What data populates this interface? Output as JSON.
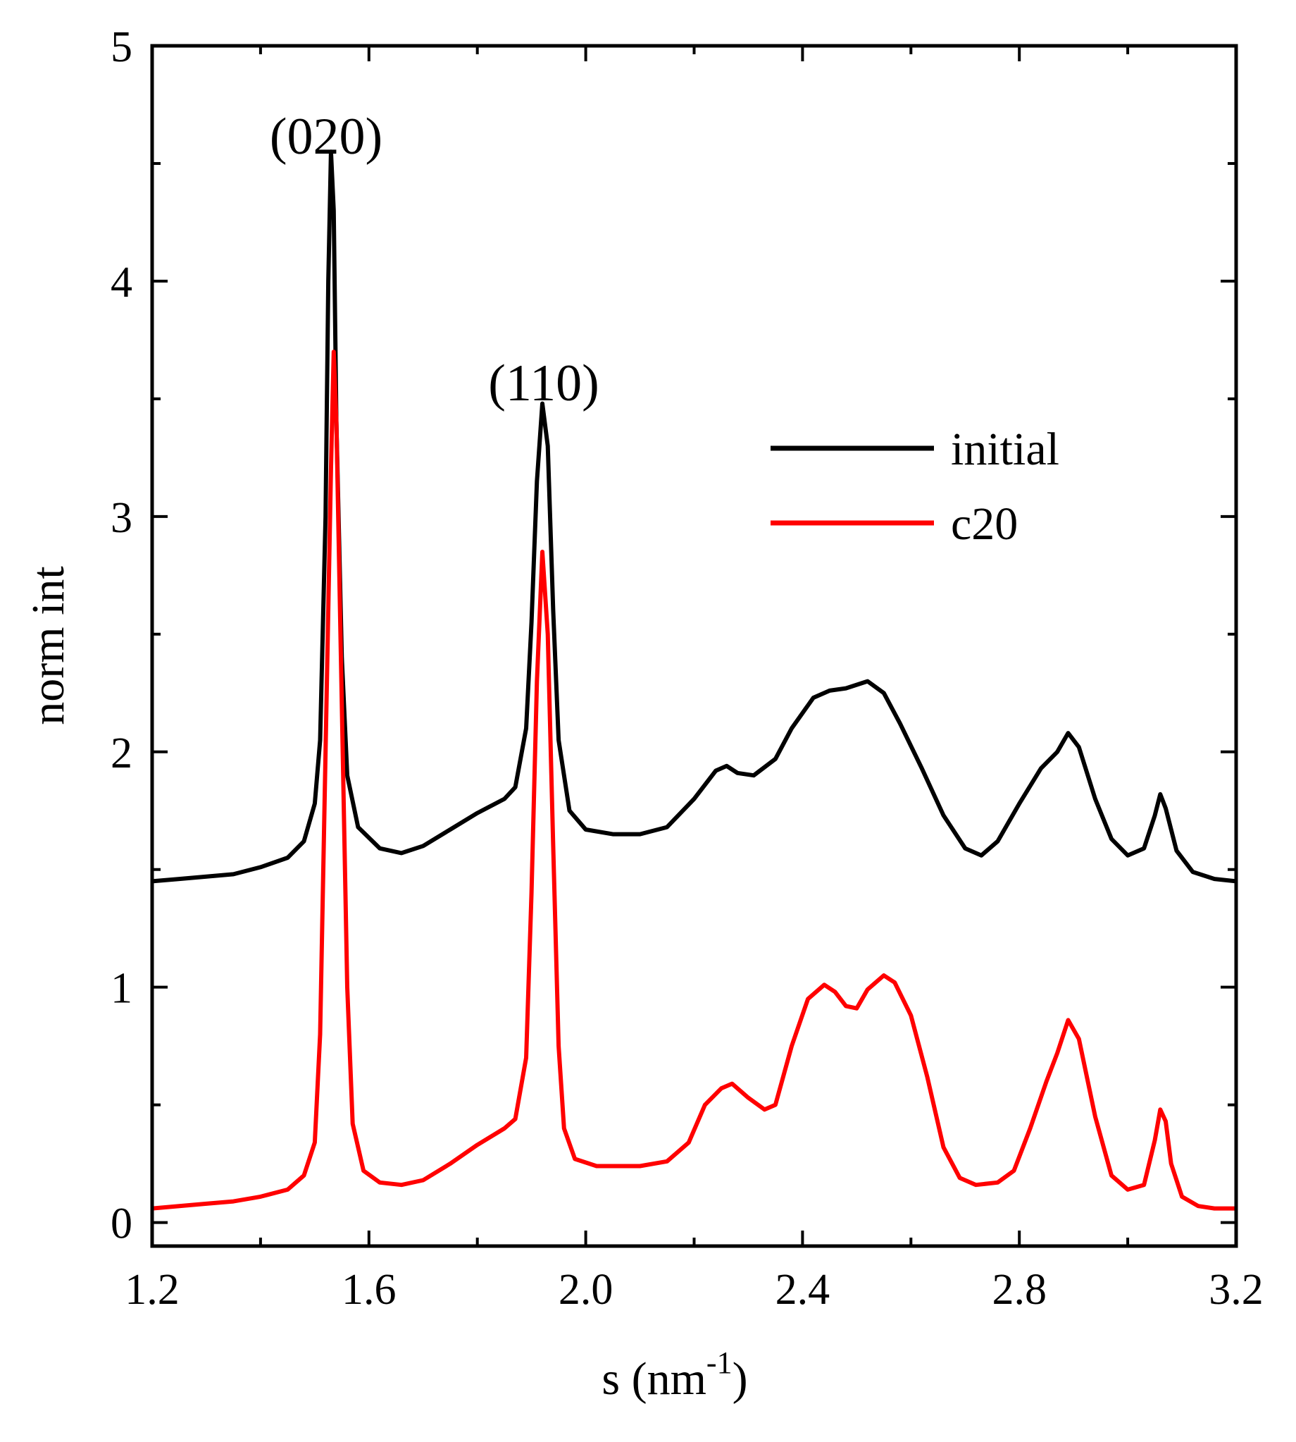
{
  "chart_data": {
    "type": "line",
    "title": "",
    "xlabel": "s (nm",
    "xlabel_sup": "-1",
    "xlabel_close": ")",
    "ylabel": "norm int",
    "xlim": [
      1.2,
      3.2
    ],
    "ylim": [
      -0.1,
      5.0
    ],
    "xticks": [
      1.2,
      1.6,
      2.0,
      2.4,
      2.8,
      3.2
    ],
    "xtick_labels": [
      "1.2",
      "1.6",
      "2.0",
      "2.4",
      "2.8",
      "3.2"
    ],
    "x_minor_ticks": [
      1.4,
      1.8,
      2.2,
      2.6,
      3.0
    ],
    "yticks": [
      0,
      1,
      2,
      3,
      4,
      5
    ],
    "ytick_labels": [
      "0",
      "1",
      "2",
      "3",
      "4",
      "5"
    ],
    "y_minor_ticks": [
      0.5,
      1.5,
      2.5,
      3.5,
      4.5
    ],
    "grid": false,
    "legend_position": "top-right",
    "annotations": [
      {
        "text": "(020)",
        "x": 1.53,
        "y": 4.72
      },
      {
        "text": "(110)",
        "x": 1.92,
        "y": 3.63
      }
    ],
    "series": [
      {
        "name": "initial",
        "color": "#000000",
        "points": [
          [
            1.2,
            1.45
          ],
          [
            1.25,
            1.46
          ],
          [
            1.3,
            1.47
          ],
          [
            1.35,
            1.48
          ],
          [
            1.4,
            1.51
          ],
          [
            1.45,
            1.55
          ],
          [
            1.48,
            1.62
          ],
          [
            1.5,
            1.78
          ],
          [
            1.51,
            2.05
          ],
          [
            1.52,
            3.0
          ],
          [
            1.525,
            4.0
          ],
          [
            1.53,
            4.55
          ],
          [
            1.535,
            4.3
          ],
          [
            1.54,
            3.4
          ],
          [
            1.55,
            2.4
          ],
          [
            1.56,
            1.9
          ],
          [
            1.58,
            1.68
          ],
          [
            1.62,
            1.59
          ],
          [
            1.66,
            1.57
          ],
          [
            1.7,
            1.6
          ],
          [
            1.75,
            1.67
          ],
          [
            1.8,
            1.74
          ],
          [
            1.85,
            1.8
          ],
          [
            1.87,
            1.85
          ],
          [
            1.89,
            2.1
          ],
          [
            1.9,
            2.55
          ],
          [
            1.91,
            3.15
          ],
          [
            1.92,
            3.48
          ],
          [
            1.93,
            3.3
          ],
          [
            1.94,
            2.6
          ],
          [
            1.95,
            2.05
          ],
          [
            1.97,
            1.75
          ],
          [
            2.0,
            1.67
          ],
          [
            2.05,
            1.65
          ],
          [
            2.1,
            1.65
          ],
          [
            2.15,
            1.68
          ],
          [
            2.2,
            1.8
          ],
          [
            2.24,
            1.92
          ],
          [
            2.26,
            1.94
          ],
          [
            2.28,
            1.91
          ],
          [
            2.31,
            1.9
          ],
          [
            2.35,
            1.97
          ],
          [
            2.38,
            2.1
          ],
          [
            2.42,
            2.23
          ],
          [
            2.45,
            2.26
          ],
          [
            2.48,
            2.27
          ],
          [
            2.52,
            2.3
          ],
          [
            2.55,
            2.25
          ],
          [
            2.58,
            2.12
          ],
          [
            2.62,
            1.93
          ],
          [
            2.66,
            1.73
          ],
          [
            2.7,
            1.59
          ],
          [
            2.73,
            1.56
          ],
          [
            2.76,
            1.62
          ],
          [
            2.8,
            1.78
          ],
          [
            2.84,
            1.93
          ],
          [
            2.87,
            2.0
          ],
          [
            2.89,
            2.08
          ],
          [
            2.91,
            2.02
          ],
          [
            2.94,
            1.8
          ],
          [
            2.97,
            1.63
          ],
          [
            3.0,
            1.56
          ],
          [
            3.03,
            1.59
          ],
          [
            3.05,
            1.73
          ],
          [
            3.06,
            1.82
          ],
          [
            3.07,
            1.76
          ],
          [
            3.09,
            1.58
          ],
          [
            3.12,
            1.49
          ],
          [
            3.16,
            1.46
          ],
          [
            3.2,
            1.45
          ]
        ]
      },
      {
        "name": "c20",
        "color": "#ff0000",
        "points": [
          [
            1.2,
            0.06
          ],
          [
            1.25,
            0.07
          ],
          [
            1.3,
            0.08
          ],
          [
            1.35,
            0.09
          ],
          [
            1.4,
            0.11
          ],
          [
            1.45,
            0.14
          ],
          [
            1.48,
            0.2
          ],
          [
            1.5,
            0.34
          ],
          [
            1.51,
            0.8
          ],
          [
            1.52,
            2.0
          ],
          [
            1.53,
            3.2
          ],
          [
            1.535,
            3.7
          ],
          [
            1.54,
            3.4
          ],
          [
            1.55,
            2.2
          ],
          [
            1.56,
            1.0
          ],
          [
            1.57,
            0.42
          ],
          [
            1.59,
            0.22
          ],
          [
            1.62,
            0.17
          ],
          [
            1.66,
            0.16
          ],
          [
            1.7,
            0.18
          ],
          [
            1.75,
            0.25
          ],
          [
            1.8,
            0.33
          ],
          [
            1.85,
            0.4
          ],
          [
            1.87,
            0.44
          ],
          [
            1.89,
            0.7
          ],
          [
            1.9,
            1.4
          ],
          [
            1.91,
            2.3
          ],
          [
            1.92,
            2.85
          ],
          [
            1.93,
            2.5
          ],
          [
            1.94,
            1.6
          ],
          [
            1.95,
            0.75
          ],
          [
            1.96,
            0.4
          ],
          [
            1.98,
            0.27
          ],
          [
            2.02,
            0.24
          ],
          [
            2.1,
            0.24
          ],
          [
            2.15,
            0.26
          ],
          [
            2.19,
            0.34
          ],
          [
            2.22,
            0.5
          ],
          [
            2.25,
            0.57
          ],
          [
            2.27,
            0.59
          ],
          [
            2.3,
            0.53
          ],
          [
            2.33,
            0.48
          ],
          [
            2.35,
            0.5
          ],
          [
            2.38,
            0.75
          ],
          [
            2.41,
            0.95
          ],
          [
            2.44,
            1.01
          ],
          [
            2.46,
            0.98
          ],
          [
            2.48,
            0.92
          ],
          [
            2.5,
            0.91
          ],
          [
            2.52,
            0.99
          ],
          [
            2.55,
            1.05
          ],
          [
            2.57,
            1.02
          ],
          [
            2.6,
            0.88
          ],
          [
            2.63,
            0.62
          ],
          [
            2.66,
            0.32
          ],
          [
            2.69,
            0.19
          ],
          [
            2.72,
            0.16
          ],
          [
            2.76,
            0.17
          ],
          [
            2.79,
            0.22
          ],
          [
            2.82,
            0.4
          ],
          [
            2.85,
            0.6
          ],
          [
            2.87,
            0.72
          ],
          [
            2.89,
            0.86
          ],
          [
            2.91,
            0.78
          ],
          [
            2.94,
            0.45
          ],
          [
            2.97,
            0.2
          ],
          [
            3.0,
            0.14
          ],
          [
            3.03,
            0.16
          ],
          [
            3.05,
            0.35
          ],
          [
            3.06,
            0.48
          ],
          [
            3.07,
            0.43
          ],
          [
            3.08,
            0.25
          ],
          [
            3.1,
            0.11
          ],
          [
            3.13,
            0.07
          ],
          [
            3.16,
            0.06
          ],
          [
            3.2,
            0.06
          ]
        ]
      }
    ]
  }
}
